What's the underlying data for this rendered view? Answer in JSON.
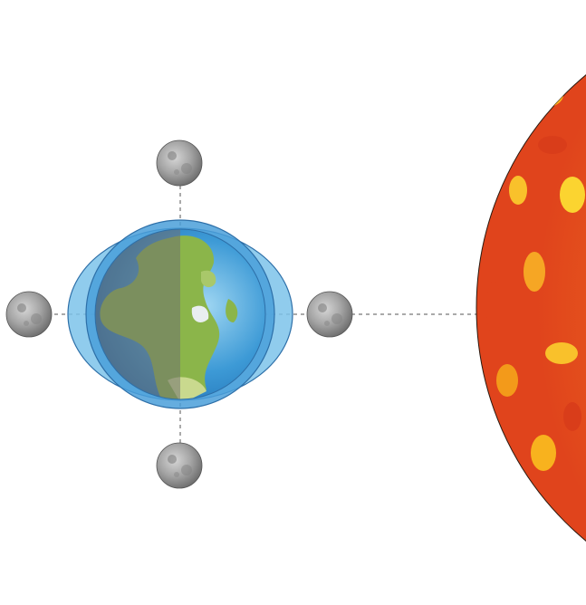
{
  "diagram": {
    "subject": "tidal bulges",
    "colors": {
      "background": "#ffffff",
      "tidal_bulge_fill": "#7cc3ea",
      "tidal_bulge_stroke": "#2d6fa8",
      "ocean": "#3a9ad8",
      "land": "#8bb54a",
      "night_shade": "#6f6f6f",
      "moon": "#9a9a9a",
      "sun_base": "#e8501f",
      "sun_light": "#f7a21b",
      "sun_hot": "#fbd430",
      "guide_line": "#555555"
    },
    "icons": {
      "earth": "earth-icon",
      "moon": "moon-icon",
      "sun": "sun-icon"
    },
    "moon_positions": [
      "top",
      "left",
      "right",
      "bottom"
    ]
  }
}
